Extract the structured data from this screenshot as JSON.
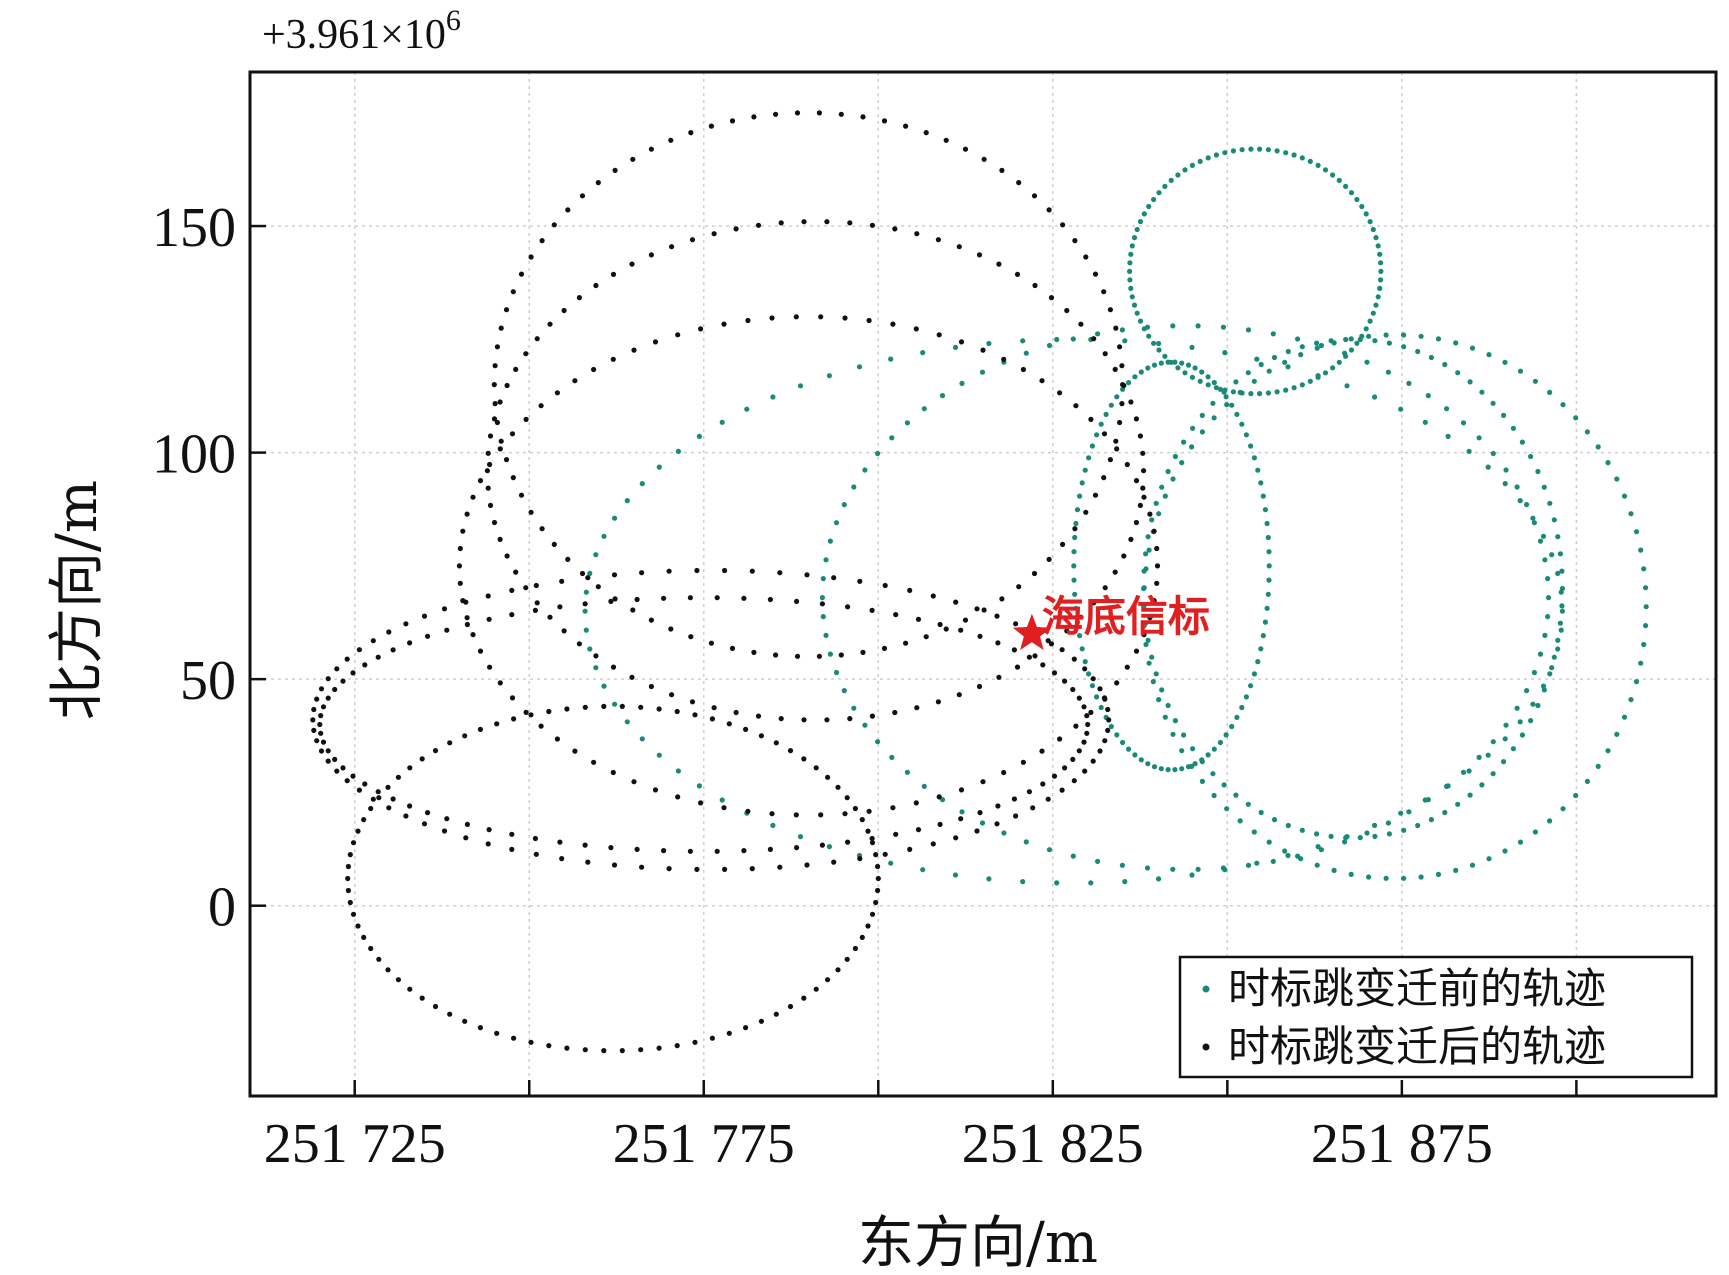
{
  "chart_data": {
    "type": "scatter",
    "title": "",
    "xlabel": "东方向/m",
    "ylabel": "北方向/m",
    "offset_label": "+3.961×10",
    "offset_exponent": "6",
    "xlim": [
      251710,
      251920
    ],
    "ylim": [
      -42,
      184
    ],
    "x_ticks": [
      251725,
      251750,
      251775,
      251800,
      251825,
      251850,
      251875,
      251900
    ],
    "x_tick_labels": [
      "251 725",
      "",
      "251 775",
      "",
      "251 825",
      "",
      "251 875",
      ""
    ],
    "y_ticks": [
      0,
      50,
      100,
      150
    ],
    "y_tick_labels": [
      "0",
      "50",
      "100",
      "150"
    ],
    "grid": true,
    "legend_position": "bottom-right",
    "series": [
      {
        "name": "时标跳变迁前的轨迹",
        "color": "#1a8a78",
        "ellipses": [
          {
            "cx": 251854,
            "cy": 140,
            "rx": 18,
            "ry": 27
          },
          {
            "cx": 251842,
            "cy": 75,
            "rx": 14,
            "ry": 45
          },
          {
            "cx": 251828,
            "cy": 65,
            "rx": 70,
            "ry": 60
          },
          {
            "cx": 251844,
            "cy": 68,
            "rx": 52,
            "ry": 60
          },
          {
            "cx": 251868,
            "cy": 70,
            "rx": 30,
            "ry": 55
          },
          {
            "cx": 251874,
            "cy": 66,
            "rx": 36,
            "ry": 60
          }
        ]
      },
      {
        "name": "时标跳变迁后的轨迹",
        "color": "#111111",
        "ellipses": [
          {
            "cx": 251790,
            "cy": 115,
            "rx": 45,
            "ry": 60
          },
          {
            "cx": 251791,
            "cy": 96,
            "rx": 47,
            "ry": 55
          },
          {
            "cx": 251790,
            "cy": 75,
            "rx": 50,
            "ry": 55
          },
          {
            "cx": 251776,
            "cy": 41,
            "rx": 57,
            "ry": 33
          },
          {
            "cx": 251762,
            "cy": 6,
            "rx": 38,
            "ry": 38
          },
          {
            "cx": 251775,
            "cy": 40,
            "rx": 55,
            "ry": 28
          }
        ]
      }
    ],
    "annotation": {
      "label": "海底信标",
      "x": 251822,
      "y": 60,
      "color": "#e02020"
    }
  }
}
